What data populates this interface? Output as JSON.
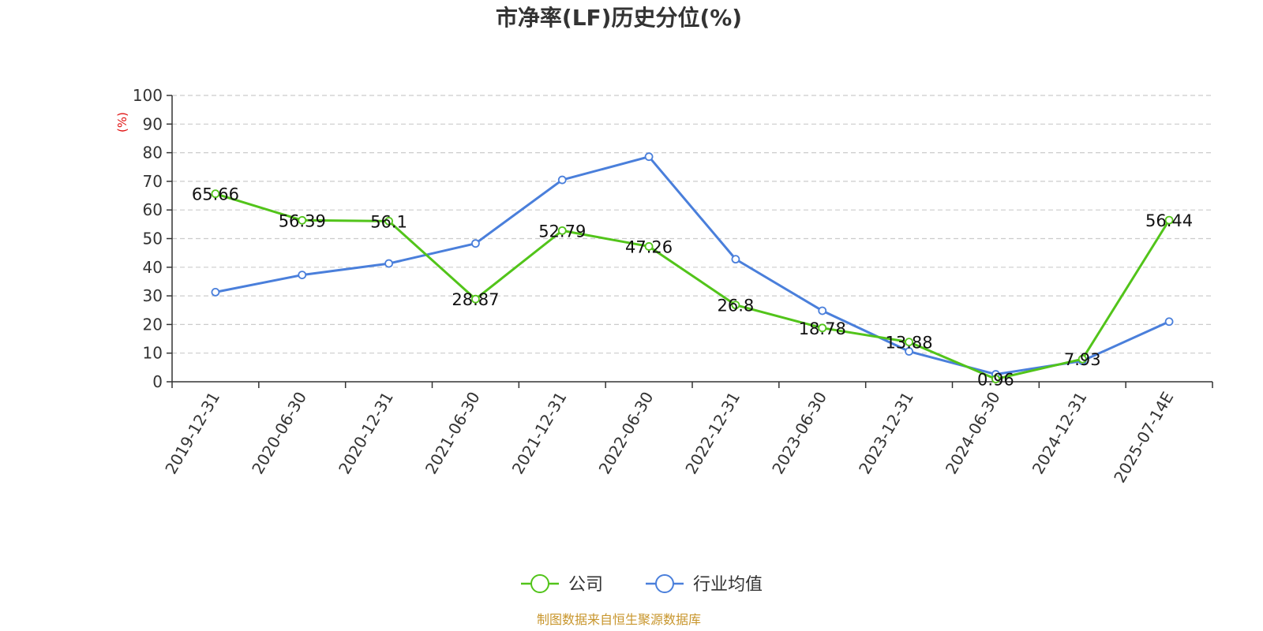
{
  "chart_data": {
    "type": "line",
    "title": "市净率(LF)历史分位(%)",
    "y_unit_label": "(%)",
    "ylim": [
      0,
      100
    ],
    "y_ticks": [
      0,
      10,
      20,
      30,
      40,
      50,
      60,
      70,
      80,
      90,
      100
    ],
    "grid": true,
    "legend_position": "bottom-center",
    "categories": [
      "2019-12-31",
      "2020-06-30",
      "2020-12-31",
      "2021-06-30",
      "2021-12-31",
      "2022-06-30",
      "2022-12-31",
      "2023-06-30",
      "2023-12-31",
      "2024-06-30",
      "2024-12-31",
      "2025-07-14E"
    ],
    "series": [
      {
        "name": "公司",
        "color": "#52c41a",
        "values": [
          65.66,
          56.39,
          56.1,
          28.87,
          52.79,
          47.26,
          26.8,
          18.78,
          13.88,
          0.96,
          7.93,
          56.44
        ],
        "data_labels": [
          "65.66",
          "56.39",
          "56.1",
          "28.87",
          "52.79",
          "47.26",
          "26.8",
          "18.78",
          "13.88",
          "0.96",
          "7.93",
          "56.44"
        ]
      },
      {
        "name": "行业均值",
        "color": "#4a7fdb",
        "values": [
          31.3,
          37.3,
          41.3,
          48.3,
          70.5,
          78.6,
          42.8,
          24.8,
          10.6,
          2.6,
          7.3,
          21.0
        ]
      }
    ],
    "source": "制图数据来自恒生聚源数据库"
  }
}
